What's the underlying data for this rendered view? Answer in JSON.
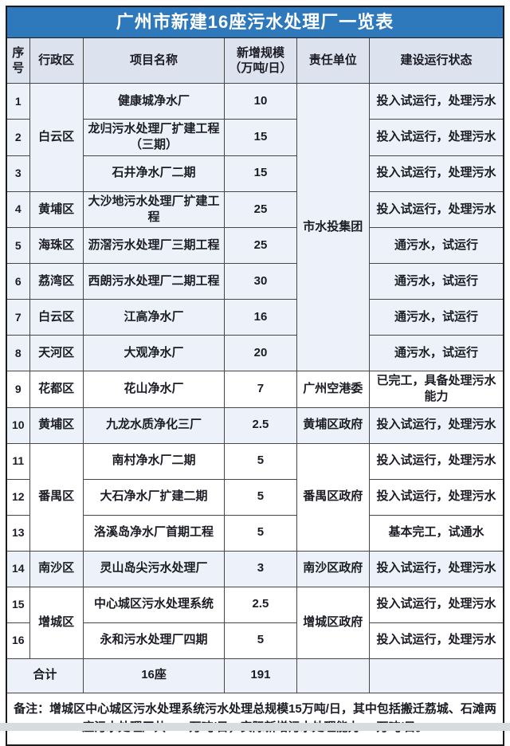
{
  "title": "广州市新建16座污水处理厂一览表",
  "columns": {
    "index": "序号",
    "district": "行政区",
    "project": "项目名称",
    "capacity_line1": "新增规模",
    "capacity_line2": "（万吨/日）",
    "unit": "责任单位",
    "status": "建设运行状态"
  },
  "rows": [
    {
      "no": "1",
      "district": "白云区",
      "project": "健康城净水厂",
      "capacity": "10",
      "unit": "市水投集团",
      "status": "投入试运行，处理污水"
    },
    {
      "no": "2",
      "project": "龙归污水处理厂扩建工程（三期）",
      "capacity": "15",
      "status": "投入试运行，处理污水"
    },
    {
      "no": "3",
      "project": "石井净水厂二期",
      "capacity": "15",
      "status": "投入试运行，处理污水"
    },
    {
      "no": "4",
      "district": "黄埔区",
      "project": "大沙地污水处理厂扩建工程",
      "capacity": "25",
      "status": "投入试运行，处理污水"
    },
    {
      "no": "5",
      "district": "海珠区",
      "project": "沥滘污水处理厂三期工程",
      "capacity": "25",
      "status": "通污水，试运行"
    },
    {
      "no": "6",
      "district": "荔湾区",
      "project": "西朗污水处理厂二期工程",
      "capacity": "30",
      "status": "通污水，试运行"
    },
    {
      "no": "7",
      "district": "白云区",
      "project": "江高净水厂",
      "capacity": "16",
      "status": "通污水，试运行"
    },
    {
      "no": "8",
      "district": "天河区",
      "project": "大观净水厂",
      "capacity": "20",
      "status": "通污水，试运行"
    },
    {
      "no": "9",
      "district": "花都区",
      "project": "花山净水厂",
      "capacity": "7",
      "unit": "广州空港委",
      "status": "已完工，具备处理污水能力"
    },
    {
      "no": "10",
      "district": "黄埔区",
      "project": "九龙水质净化三厂",
      "capacity": "2.5",
      "unit": "黄埔区政府",
      "status": "投入试运行，处理污水"
    },
    {
      "no": "11",
      "district": "番禺区",
      "project": "南村净水厂二期",
      "capacity": "5",
      "unit": "番禺区政府",
      "status": "投入试运行，处理污水"
    },
    {
      "no": "12",
      "project": "大石净水厂扩建二期",
      "capacity": "5",
      "status": "投入试运行，处理污水"
    },
    {
      "no": "13",
      "project": "洛溪岛净水厂首期工程",
      "capacity": "5",
      "status": "基本完工，试通水"
    },
    {
      "no": "14",
      "district": "南沙区",
      "project": "灵山岛尖污水处理厂",
      "capacity": "3",
      "unit": "南沙区政府",
      "status": "投入试运行，处理污水"
    },
    {
      "no": "15",
      "district": "增城区",
      "project": "中心城区污水处理系统",
      "capacity": "2.5",
      "unit": "增城区政府",
      "status": "投入试运行，处理污水"
    },
    {
      "no": "16",
      "project": "永和污水处理厂四期",
      "capacity": "5",
      "status": "投入试运行，处理污水"
    }
  ],
  "total_row": {
    "label": "合计",
    "project": "16座",
    "capacity": "191"
  },
  "note": "备注：增城区中心城区污水处理系统污水处理总规模15万吨/日，其中包括搬迁荔城、石滩两座污水处理厂共12.5万吨/日，实际新增污水处理能力2.5万吨/日。",
  "colors": {
    "title_bar": "#2e78bc",
    "title_text": "#ffffff",
    "header_bg": "#dce2ee",
    "row_tint": "#edf2fa",
    "row_white": "#ffffff",
    "border": "#464646",
    "text": "#1b1c24",
    "bottom_strip": "#d8dbdf"
  }
}
